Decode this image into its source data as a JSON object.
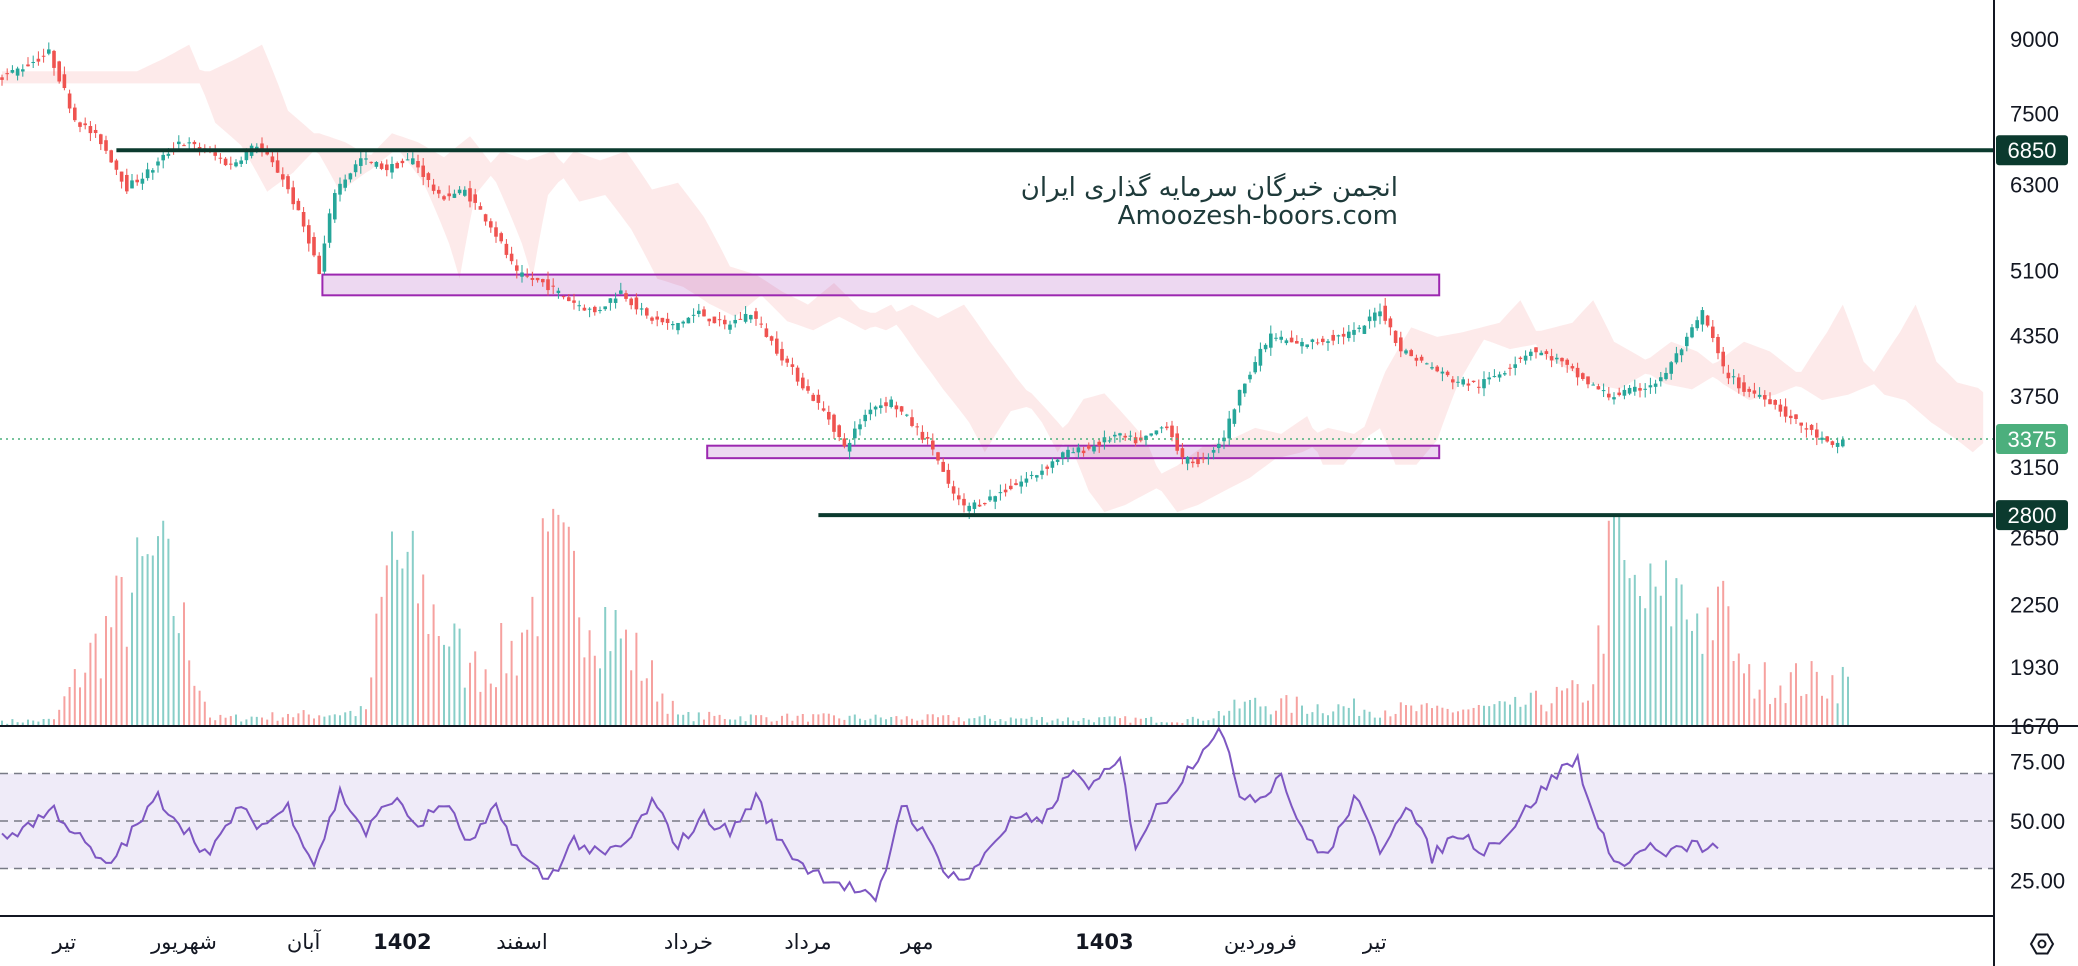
{
  "watermark": {
    "line1": "انجمن خبرگان سرمایه گذاری ایران",
    "line2": "Amoozesh-boors.com"
  },
  "colors": {
    "up": "#26a69a",
    "down": "#ef5350",
    "zone": "#9c27b0",
    "level": "#0b3a2e",
    "rsi": "#7e57c2",
    "last_price": "#4caf7d"
  },
  "chart_data": {
    "type": "candlestick",
    "price_axis": {
      "ticks": [
        "9000",
        "7500",
        "6300",
        "5100",
        "4350",
        "3750",
        "3150",
        "2650",
        "2250",
        "1930",
        "1670"
      ],
      "scale": "log",
      "range": [
        1670,
        9900
      ]
    },
    "time_axis": {
      "labels": [
        {
          "text": "تیر",
          "bold": false
        },
        {
          "text": "شهریور",
          "bold": false
        },
        {
          "text": "آبان",
          "bold": false
        },
        {
          "text": "1402",
          "bold": true
        },
        {
          "text": "اسفند",
          "bold": false
        },
        {
          "text": "خرداد",
          "bold": false
        },
        {
          "text": "مرداد",
          "bold": false
        },
        {
          "text": "مهر",
          "bold": false
        },
        {
          "text": "1403",
          "bold": true
        },
        {
          "text": "فروردین",
          "bold": false
        },
        {
          "text": "تیر",
          "bold": false
        }
      ]
    },
    "levels": [
      {
        "value": 6850,
        "label": "6850"
      },
      {
        "value": 2800,
        "label": "2800"
      }
    ],
    "last_price": {
      "value": 3375,
      "label": "3375"
    },
    "zones": [
      {
        "low": 4800,
        "high": 5050
      },
      {
        "low": 3220,
        "high": 3320
      }
    ],
    "close_path": [
      [
        0,
        8150
      ],
      [
        5,
        8400
      ],
      [
        10,
        8700
      ],
      [
        15,
        7400
      ],
      [
        20,
        7000
      ],
      [
        25,
        6250
      ],
      [
        30,
        6550
      ],
      [
        35,
        7000
      ],
      [
        40,
        6850
      ],
      [
        45,
        6600
      ],
      [
        50,
        6950
      ],
      [
        55,
        6400
      ],
      [
        60,
        5500
      ],
      [
        62,
        5050
      ],
      [
        65,
        6200
      ],
      [
        70,
        6700
      ],
      [
        75,
        6550
      ],
      [
        80,
        6700
      ],
      [
        85,
        6100
      ],
      [
        90,
        6200
      ],
      [
        95,
        5700
      ],
      [
        100,
        5050
      ],
      [
        105,
        4950
      ],
      [
        110,
        4750
      ],
      [
        115,
        4600
      ],
      [
        120,
        4850
      ],
      [
        125,
        4550
      ],
      [
        130,
        4450
      ],
      [
        135,
        4600
      ],
      [
        140,
        4450
      ],
      [
        145,
        4600
      ],
      [
        150,
        4200
      ],
      [
        155,
        3850
      ],
      [
        160,
        3550
      ],
      [
        163,
        3300
      ],
      [
        168,
        3650
      ],
      [
        172,
        3700
      ],
      [
        176,
        3500
      ],
      [
        180,
        3300
      ],
      [
        183,
        3000
      ],
      [
        186,
        2850
      ],
      [
        190,
        2900
      ],
      [
        195,
        3000
      ],
      [
        200,
        3100
      ],
      [
        205,
        3250
      ],
      [
        210,
        3300
      ],
      [
        215,
        3400
      ],
      [
        220,
        3350
      ],
      [
        225,
        3500
      ],
      [
        228,
        3200
      ],
      [
        232,
        3200
      ],
      [
        236,
        3400
      ],
      [
        240,
        3900
      ],
      [
        245,
        4350
      ],
      [
        250,
        4250
      ],
      [
        255,
        4300
      ],
      [
        262,
        4400
      ],
      [
        266,
        4650
      ],
      [
        270,
        4200
      ],
      [
        275,
        4050
      ],
      [
        280,
        3900
      ],
      [
        285,
        3850
      ],
      [
        290,
        4000
      ],
      [
        295,
        4200
      ],
      [
        300,
        4100
      ],
      [
        305,
        3900
      ],
      [
        310,
        3750
      ],
      [
        315,
        3800
      ],
      [
        320,
        3900
      ],
      [
        325,
        4300
      ],
      [
        328,
        4600
      ],
      [
        332,
        4000
      ],
      [
        336,
        3800
      ],
      [
        340,
        3750
      ],
      [
        345,
        3550
      ],
      [
        350,
        3400
      ],
      [
        353,
        3300
      ],
      [
        355,
        3375
      ]
    ],
    "volume": [
      [
        0,
        1692
      ],
      [
        10,
        1698
      ],
      [
        30,
        2660
      ],
      [
        40,
        1705
      ],
      [
        55,
        1720
      ],
      [
        70,
        1740
      ],
      [
        75,
        2690
      ],
      [
        90,
        1950
      ],
      [
        100,
        2100
      ],
      [
        105,
        2690
      ],
      [
        130,
        1718
      ],
      [
        150,
        1712
      ],
      [
        230,
        1700
      ],
      [
        240,
        1780
      ],
      [
        275,
        1745
      ],
      [
        290,
        1760
      ],
      [
        306,
        1850
      ],
      [
        310,
        2800
      ],
      [
        313,
        2400
      ],
      [
        318,
        2350
      ],
      [
        322,
        2400
      ],
      [
        326,
        2200
      ],
      [
        330,
        2350
      ],
      [
        335,
        1900
      ]
    ],
    "rsi": {
      "ticks": [
        "75.00",
        "50.00",
        "25.00"
      ],
      "range": [
        10,
        90
      ],
      "band": [
        30,
        70
      ],
      "values": [
        [
          0,
          42
        ],
        [
          10,
          55
        ],
        [
          20,
          30
        ],
        [
          30,
          60
        ],
        [
          40,
          35
        ],
        [
          45,
          55
        ],
        [
          50,
          48
        ],
        [
          55,
          56
        ],
        [
          60,
          32
        ],
        [
          65,
          62
        ],
        [
          70,
          45
        ],
        [
          75,
          60
        ],
        [
          80,
          48
        ],
        [
          85,
          58
        ],
        [
          90,
          40
        ],
        [
          95,
          55
        ],
        [
          100,
          35
        ],
        [
          105,
          25
        ],
        [
          110,
          42
        ],
        [
          115,
          35
        ],
        [
          120,
          40
        ],
        [
          125,
          58
        ],
        [
          130,
          40
        ],
        [
          135,
          52
        ],
        [
          140,
          45
        ],
        [
          145,
          60
        ],
        [
          150,
          40
        ],
        [
          155,
          30
        ],
        [
          160,
          25
        ],
        [
          165,
          20
        ],
        [
          168,
          15
        ],
        [
          170,
          30
        ],
        [
          173,
          58
        ],
        [
          177,
          45
        ],
        [
          182,
          28
        ],
        [
          186,
          25
        ],
        [
          190,
          40
        ],
        [
          195,
          52
        ],
        [
          200,
          48
        ],
        [
          205,
          70
        ],
        [
          210,
          65
        ],
        [
          215,
          75
        ],
        [
          218,
          40
        ],
        [
          222,
          55
        ],
        [
          226,
          65
        ],
        [
          230,
          78
        ],
        [
          234,
          90
        ],
        [
          238,
          62
        ],
        [
          242,
          60
        ],
        [
          246,
          70
        ],
        [
          250,
          45
        ],
        [
          255,
          35
        ],
        [
          260,
          60
        ],
        [
          265,
          38
        ],
        [
          270,
          58
        ],
        [
          275,
          35
        ],
        [
          280,
          45
        ],
        [
          285,
          38
        ],
        [
          290,
          46
        ],
        [
          295,
          60
        ],
        [
          300,
          72
        ],
        [
          303,
          76
        ],
        [
          307,
          45
        ],
        [
          312,
          30
        ],
        [
          316,
          40
        ],
        [
          320,
          35
        ],
        [
          325,
          40
        ],
        [
          330,
          38
        ]
      ]
    }
  }
}
